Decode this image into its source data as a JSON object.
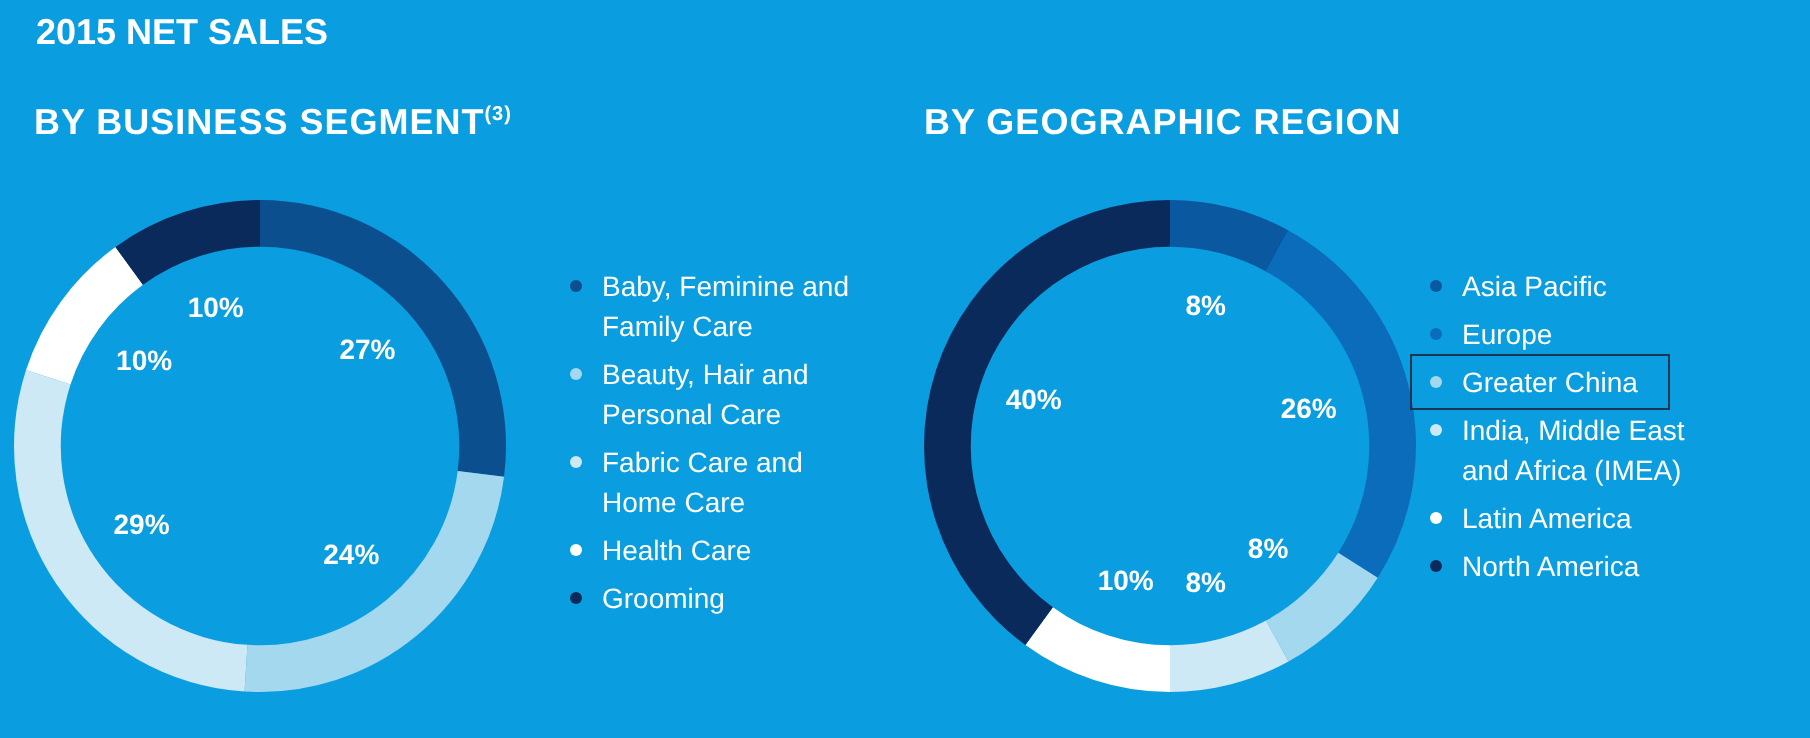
{
  "chart_data": [
    {
      "type": "donut",
      "title": "2015 NET SALES",
      "subtitle": "BY BUSINESS SEGMENT$^{(3)}$",
      "categories": [
        "Baby, Feminine and Family Care",
        "Beauty, Hair and Personal Care",
        "Fabric Care and Home Care",
        "Health Care",
        "Grooming"
      ],
      "values": [
        27,
        24,
        29,
        10,
        10
      ],
      "value_labels": [
        "27%",
        "24%",
        "29%",
        "10%",
        "10%"
      ],
      "colors": [
        "#0b4f8e",
        "#a3d8ef",
        "#cce9f5",
        "#ffffff",
        "#0b2a5c"
      ],
      "legend": "right"
    },
    {
      "type": "donut",
      "title": "BY GEOGRAPHIC REGION",
      "categories": [
        "Asia Pacific",
        "Europe",
        "Greater China",
        "India, Middle East and Africa (IMEA)",
        "Latin America",
        "North America"
      ],
      "values": [
        8,
        26,
        8,
        8,
        10,
        40
      ],
      "value_labels": [
        "8%",
        "26%",
        "8%",
        "8%",
        "10%",
        "40%"
      ],
      "colors": [
        "#0a58a0",
        "#0a6cba",
        "#a3d8ef",
        "#cce9f5",
        "#ffffff",
        "#0b2a5c"
      ],
      "legend": "right"
    }
  ]
}
